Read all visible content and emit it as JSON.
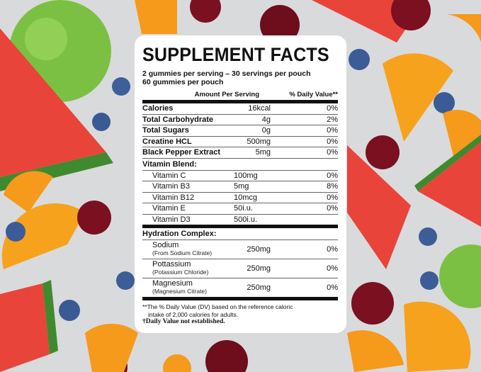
{
  "panel": {
    "title": "SUPPLEMENT FACTS",
    "serving_line1": "2 gummies per serving – 30 servings per pouch",
    "serving_line2": "60 gummies per pouch",
    "header_amount": "Amount Per Serving",
    "header_dv": "% Daily Value**",
    "main_rows": [
      {
        "name": "Calories",
        "amount": "16kcal",
        "dv": "0%"
      },
      {
        "name": "Total Carbohydrate",
        "amount": "4g",
        "dv": "2%"
      },
      {
        "name": "Total Sugars",
        "amount": "0g",
        "dv": "0%"
      },
      {
        "name": "Creatine HCL",
        "amount": "500mg",
        "dv": "0%"
      },
      {
        "name": "Black Pepper Extract",
        "amount": "5mg",
        "dv": "0%"
      }
    ],
    "vitamin_heading": "Vitamin Blend:",
    "vitamins": [
      {
        "name": "Vitamin C",
        "amount": "100mg",
        "dv": "0%"
      },
      {
        "name": "Vitamin B3",
        "amount": "5mg",
        "dv": "8%"
      },
      {
        "name": "Vitamin B12",
        "amount": "10mcg",
        "dv": "0%"
      },
      {
        "name": "Vitamin E",
        "amount": "50i.u.",
        "dv": "0%"
      },
      {
        "name": "Vitamin D3",
        "amount": "500i.u.",
        "dv": ""
      }
    ],
    "hydration_heading": "Hydration Complex:",
    "hydration": [
      {
        "name": "Sodium",
        "source": "(From Sodium Citrate)",
        "amount": "250mg",
        "dv": "0%"
      },
      {
        "name": "Pottassium",
        "source": "(Potassium Chloride)",
        "amount": "250mg",
        "dv": "0%"
      },
      {
        "name": "Magnesium",
        "source": "(Magnesium Citrate)",
        "amount": "250mg",
        "dv": "0%"
      }
    ],
    "footnote1": "**The % Daily Value (DV) based on the reference caloric",
    "footnote2": "intake of 2,000 calories for adults.",
    "footnote3": "†Daily Value not established."
  }
}
